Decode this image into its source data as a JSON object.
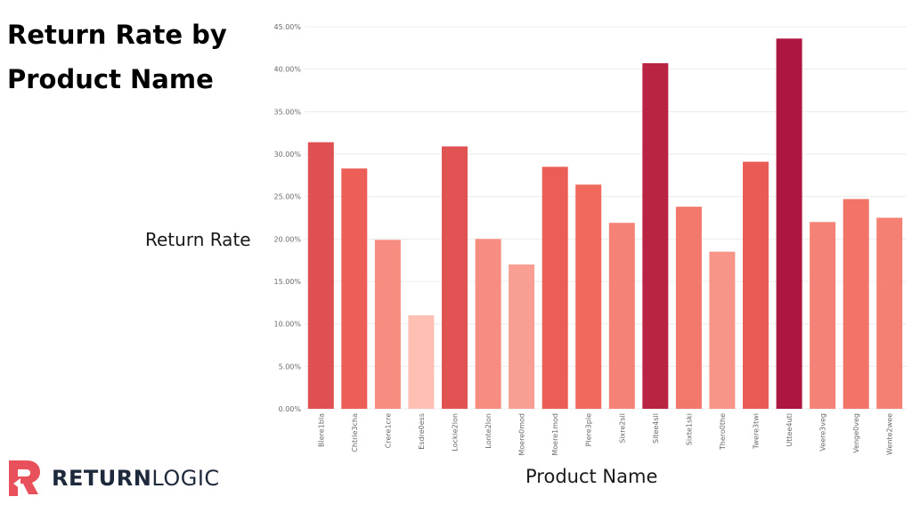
{
  "title": "Return Rate by Product Name",
  "logo": {
    "part1": "RETURN",
    "part2": "LOGIC"
  },
  "colors": {
    "bar_low": "#ffbfb3",
    "bar_high": "#ad1640",
    "grid": "#ececec",
    "logo_mark": "#e8505b"
  },
  "chart_data": {
    "type": "bar",
    "xlabel": "Product Name",
    "ylabel": "Return Rate",
    "ylim": [
      0,
      45
    ],
    "yticks": [
      "0.00%",
      "5.00%",
      "10.00%",
      "15.00%",
      "20.00%",
      "25.00%",
      "30.00%",
      "35.00%",
      "40.00%",
      "45.00%"
    ],
    "grid": true,
    "legend": "none",
    "categories": [
      "Blere1bla",
      "Chtrie3cha",
      "Crere1cre",
      "Esdre0ess",
      "Lockie2lon",
      "Lonte2lon",
      "Moere0mod",
      "Moere1mod",
      "Plere3ple",
      "Sixre2sil",
      "Sitee4sil",
      "Sixte1ski",
      "Thero0the",
      "Twere3twi",
      "Uttee4uti",
      "Veere3veg",
      "Venge0veg",
      "Wente2wee"
    ],
    "values": [
      31.4,
      28.3,
      19.9,
      11.0,
      30.9,
      20.0,
      17.0,
      28.5,
      26.4,
      21.9,
      40.7,
      23.8,
      18.5,
      29.1,
      43.6,
      22.0,
      24.7,
      22.5
    ]
  }
}
